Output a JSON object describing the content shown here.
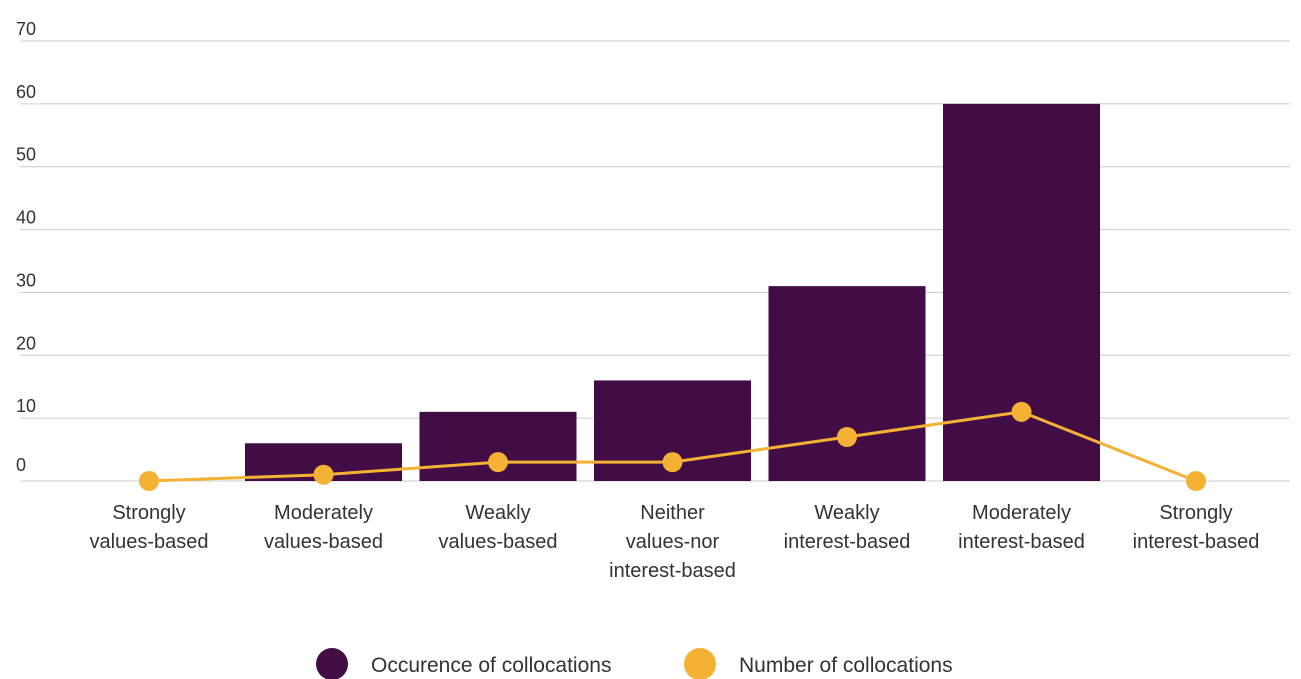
{
  "chart_data": {
    "type": "bar",
    "categories": [
      [
        "Strongly",
        "values-based"
      ],
      [
        "Moderately",
        "values-based"
      ],
      [
        "Weakly",
        "values-based"
      ],
      [
        "Neither",
        "values-nor",
        "interest-based"
      ],
      [
        "Weakly",
        "interest-based"
      ],
      [
        "Moderately",
        "interest-based"
      ],
      [
        "Strongly",
        "interest-based"
      ]
    ],
    "series": [
      {
        "name": "Occurence of collocations",
        "type": "bar",
        "color": "#420d45",
        "values": [
          0,
          6,
          11,
          16,
          31,
          60,
          0
        ]
      },
      {
        "name": "Number of collocations",
        "type": "line",
        "color": "#f5b133",
        "values": [
          0,
          1,
          3,
          3,
          7,
          11,
          0
        ]
      }
    ],
    "ylim": [
      0,
      70
    ],
    "yticks": [
      0,
      10,
      20,
      30,
      40,
      50,
      60,
      70
    ],
    "grid": true,
    "legend": "bottom-center"
  }
}
